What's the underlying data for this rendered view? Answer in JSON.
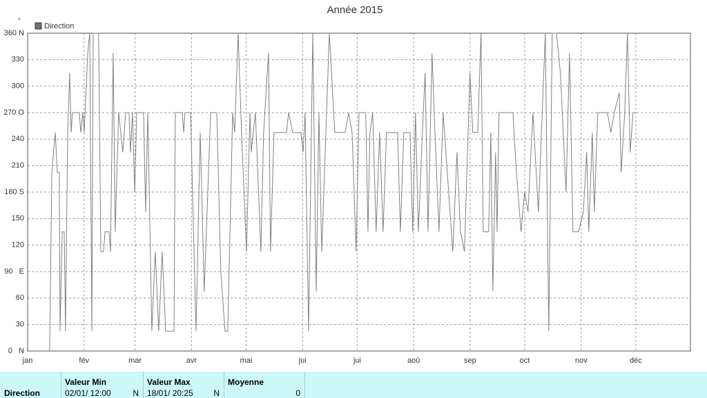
{
  "chart_data": {
    "type": "line",
    "title": "Année 2015",
    "y_label": "°",
    "legend": "top-left",
    "grid": true,
    "xlim": [
      0,
      364
    ],
    "xticks": [
      {
        "value": 0,
        "label": "jan"
      },
      {
        "value": 31,
        "label": "fév"
      },
      {
        "value": 59,
        "label": "mar"
      },
      {
        "value": 90,
        "label": "avr"
      },
      {
        "value": 120,
        "label": "mai"
      },
      {
        "value": 151,
        "label": "jui"
      },
      {
        "value": 181,
        "label": "jui"
      },
      {
        "value": 212,
        "label": "aoû"
      },
      {
        "value": 243,
        "label": "sep"
      },
      {
        "value": 273,
        "label": "oct"
      },
      {
        "value": 304,
        "label": "nov"
      },
      {
        "value": 334,
        "label": "déc"
      }
    ],
    "ylim": [
      0,
      360
    ],
    "yticks": [
      {
        "value": 0,
        "label": "0   N"
      },
      30,
      60,
      {
        "value": 90,
        "label": "90   E"
      },
      120,
      150,
      {
        "value": 180,
        "label": "180 S"
      },
      210,
      240,
      {
        "value": 270,
        "label": "270 O"
      },
      300,
      330,
      {
        "value": 360,
        "label": "360 N"
      }
    ],
    "x": [
      12.1,
      13.3,
      15.2,
      16.3,
      17.4,
      17.8,
      19,
      20.1,
      20.8,
      22,
      23.1,
      23.9,
      24.6,
      28.4,
      29.2,
      30.3,
      31.1,
      33,
      34.1,
      35.3,
      36,
      39,
      40.2,
      41.7,
      42.5,
      44.7,
      45.5,
      47,
      48.1,
      50,
      52.3,
      53.8,
      55.7,
      56.5,
      57.6,
      58.8,
      59.9,
      63.7,
      64.8,
      66,
      68.2,
      70.1,
      72,
      73.9,
      75.8,
      80.4,
      81.1,
      84.9,
      85.7,
      86.4,
      89.5,
      92.5,
      94.8,
      97,
      100.5,
      103.9,
      106.1,
      108.4,
      109.9,
      112.6,
      113.7,
      115.6,
      117.5,
      120.2,
      122.1,
      122.8,
      125.1,
      128.1,
      129.6,
      132.3,
      133.4,
      135.3,
      142.2,
      143.3,
      145.6,
      150.1,
      151.3,
      152.4,
      154.3,
      156.6,
      158.5,
      160,
      161.5,
      165.7,
      168.7,
      174.4,
      176.3,
      178.2,
      180.4,
      182,
      185.7,
      186.9,
      188,
      189.5,
      191.4,
      193.3,
      195.2,
      197.1,
      203.2,
      204.7,
      206.6,
      210,
      211.5,
      213,
      214.6,
      216.8,
      218.3,
      219.9,
      222.1,
      223.7,
      225.9,
      228.2,
      233.5,
      235.8,
      237.7,
      239.9,
      242.9,
      244.5,
      247.2,
      249,
      250.2,
      253.2,
      254.4,
      255.5,
      257,
      257.8,
      258.9,
      266.5,
      268.4,
      271,
      272.9,
      274.8,
      277.5,
      280.5,
      284.3,
      286.2,
      288.1,
      290.4,
      292.6,
      295.7,
      297.6,
      299.5,
      302.5,
      305.2,
      307,
      308.2,
      310.1,
      311.2,
      313.1,
      318.4,
      320.3,
      322.2,
      324.9,
      326,
      327.9,
      329.4,
      330.9,
      332.5,
      334
    ],
    "series": [
      {
        "name": "Direction",
        "color": "#808080",
        "values": [
          0,
          202.5,
          247.5,
          202.5,
          202.5,
          22.5,
          135,
          135,
          22.5,
          247.5,
          315,
          247.5,
          270,
          270,
          247.5,
          270,
          247.5,
          337.5,
          360,
          22.5,
          360,
          360,
          112.5,
          112.5,
          135,
          135,
          112.5,
          337.5,
          135,
          270,
          225,
          270,
          270,
          225,
          270,
          180,
          270,
          270,
          157.5,
          270,
          22.5,
          112.5,
          22.5,
          112.5,
          22.5,
          22.5,
          270,
          270,
          247.5,
          270,
          270,
          22.5,
          247.5,
          67.5,
          270,
          270,
          90,
          22.5,
          22.5,
          270,
          247.5,
          360,
          247.5,
          112.5,
          270,
          225,
          270,
          112.5,
          247.5,
          337.5,
          112.5,
          247.5,
          247.5,
          270,
          247.5,
          247.5,
          225,
          270,
          22.5,
          360,
          67.5,
          270,
          112.5,
          360,
          247.5,
          247.5,
          270,
          247.5,
          112.5,
          270,
          270,
          135,
          247.5,
          270,
          135,
          247.5,
          135,
          247.5,
          247.5,
          135,
          247.5,
          247.5,
          135,
          270,
          135,
          247.5,
          315,
          135,
          337.5,
          247.5,
          135,
          270,
          112.5,
          225,
          135,
          112.5,
          315,
          247.5,
          247.5,
          360,
          135,
          135,
          247.5,
          67.5,
          225,
          135,
          270,
          270,
          202.5,
          135,
          180,
          157.5,
          270,
          157.5,
          360,
          22.5,
          360,
          360,
          315,
          180,
          337.5,
          135,
          135,
          157.5,
          225,
          135,
          247.5,
          157.5,
          270,
          270,
          247.5,
          270,
          292.5,
          202.5,
          270,
          360,
          225,
          270,
          270
        ]
      }
    ]
  },
  "table": {
    "row_label": "Direction",
    "columns": [
      {
        "header": "Valeur Min",
        "value": "02/01/  12:00",
        "dir": "N"
      },
      {
        "header": "Valeur Max",
        "value": "18/01/  20:25",
        "dir": "N"
      },
      {
        "header": "Moyenne",
        "value": "0"
      }
    ]
  }
}
